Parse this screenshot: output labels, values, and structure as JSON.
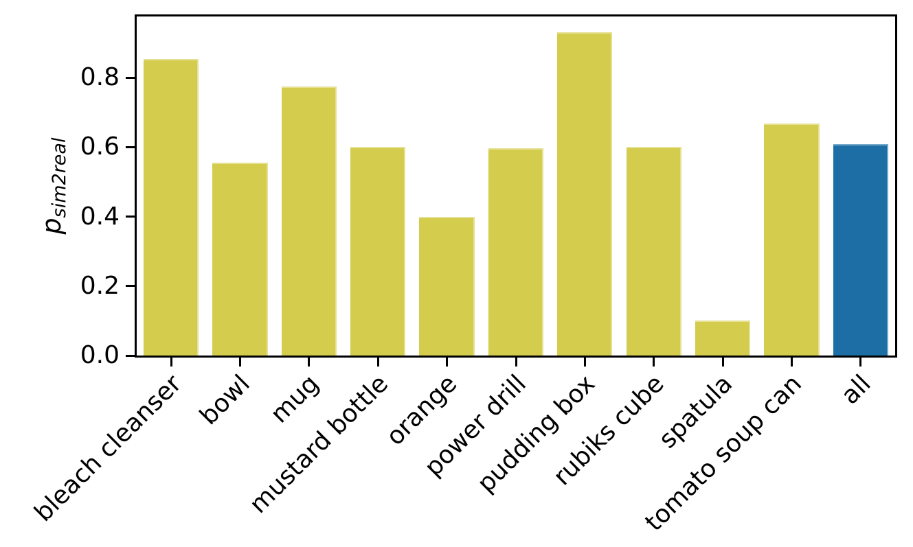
{
  "figure": {
    "background": "#ffffff",
    "axis_color": "#000000",
    "ylabel": {
      "main": "p",
      "sub": "sim2real"
    }
  },
  "chart_data": {
    "type": "bar",
    "title": "",
    "xlabel": "",
    "ylabel": "p_sim2real",
    "categories": [
      "bleach cleanser",
      "bowl",
      "mug",
      "mustard bottle",
      "orange",
      "power drill",
      "pudding box",
      "rubiks cube",
      "spatula",
      "tomato soup can",
      "all"
    ],
    "values": [
      0.853,
      0.555,
      0.774,
      0.6,
      0.4,
      0.596,
      0.93,
      0.6,
      0.1,
      0.667,
      0.608
    ],
    "bar_colors": [
      "#d4cc4c",
      "#d4cc4c",
      "#d4cc4c",
      "#d4cc4c",
      "#d4cc4c",
      "#d4cc4c",
      "#d4cc4c",
      "#d4cc4c",
      "#d4cc4c",
      "#d4cc4c",
      "#1c6ea4"
    ],
    "default_bar_color": "#d4cc4c",
    "highlight_bar_color": "#1c6ea4",
    "highlight_category": "all",
    "ylim": [
      0,
      0.976
    ],
    "yticks": [
      0.0,
      0.2,
      0.4,
      0.6,
      0.8
    ],
    "ytick_labels": [
      "0.0",
      "0.2",
      "0.4",
      "0.6",
      "0.8"
    ],
    "x_tick_rotation_deg": 45,
    "bar_width_fraction": 0.8,
    "grid": false,
    "legend": null
  }
}
